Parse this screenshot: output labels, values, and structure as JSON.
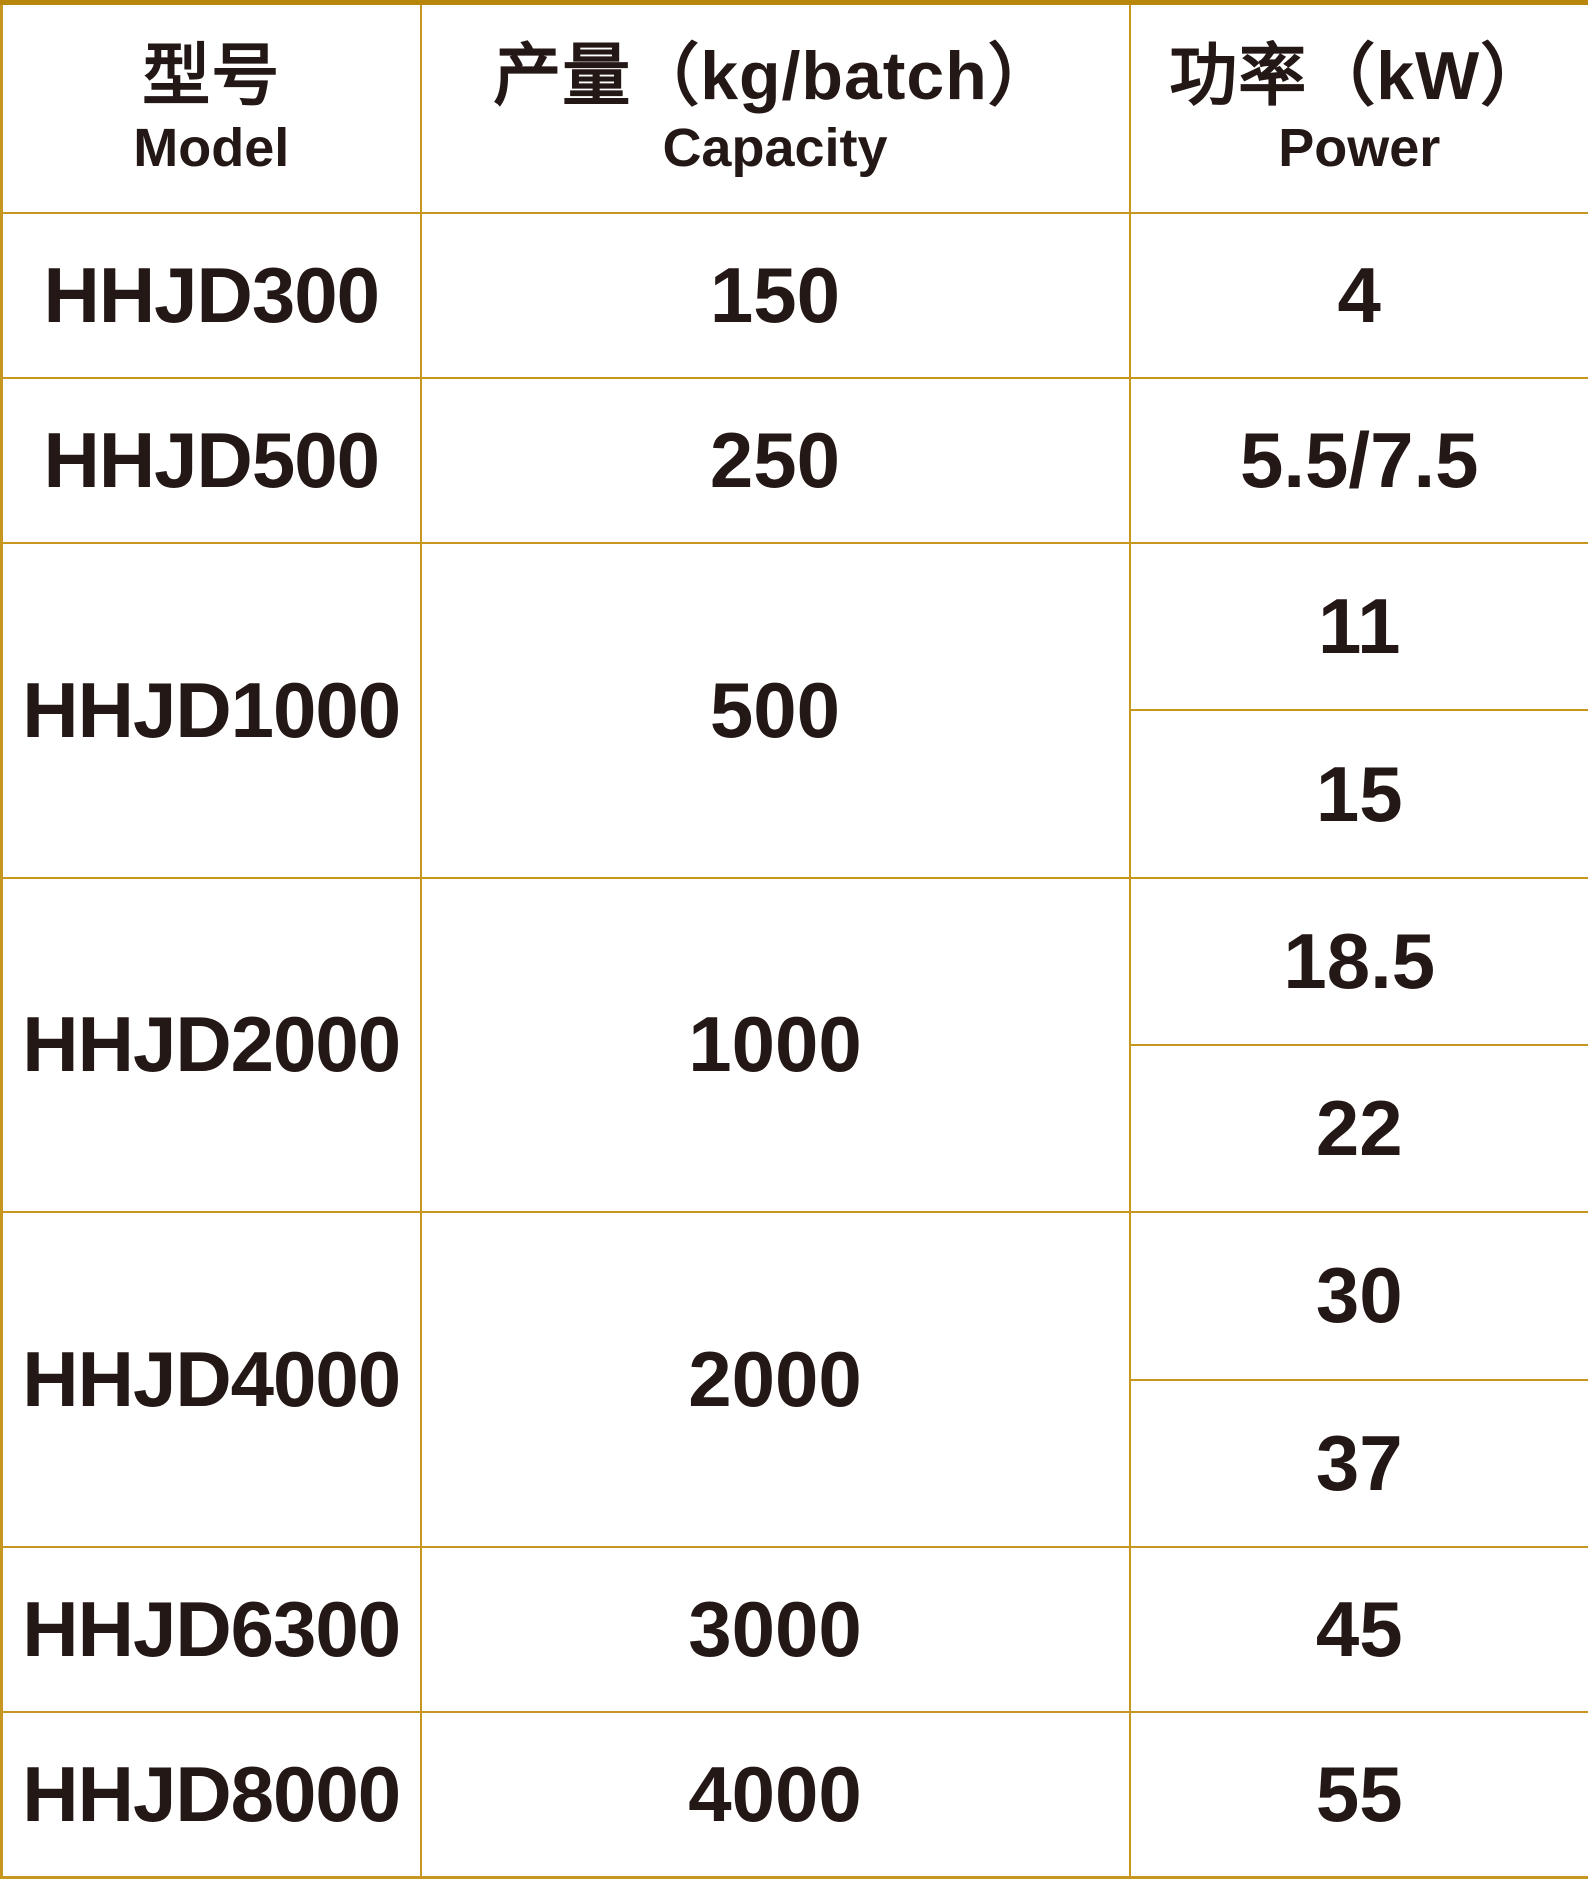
{
  "title": "Machine model specification table",
  "colors": {
    "border_gold": "#C6961E",
    "border_top_gold": "#B8860B",
    "text": "#231815",
    "background": "#FFFFFF"
  },
  "table": {
    "columns": [
      {
        "zh": "型号",
        "en": "Model"
      },
      {
        "zh": "产量（kg/batch）",
        "en": "Capacity"
      },
      {
        "zh": "功率（kW）",
        "en": "Power"
      }
    ],
    "rows": [
      {
        "model": "HHJD300",
        "capacity": "150",
        "power": [
          "4"
        ]
      },
      {
        "model": "HHJD500",
        "capacity": "250",
        "power": [
          "5.5/7.5"
        ]
      },
      {
        "model": "HHJD1000",
        "capacity": "500",
        "power": [
          "11",
          "15"
        ]
      },
      {
        "model": "HHJD2000",
        "capacity": "1000",
        "power": [
          "18.5",
          "22"
        ]
      },
      {
        "model": "HHJD4000",
        "capacity": "2000",
        "power": [
          "30",
          "37"
        ]
      },
      {
        "model": "HHJD6300",
        "capacity": "3000",
        "power": [
          "45"
        ]
      },
      {
        "model": "HHJD8000",
        "capacity": "4000",
        "power": [
          "55"
        ]
      }
    ]
  },
  "chart_data": {
    "type": "table",
    "title": "",
    "columns": [
      "型号 Model",
      "产量（kg/batch） Capacity",
      "功率（kW） Power"
    ],
    "rows": [
      [
        "HHJD300",
        150,
        "4"
      ],
      [
        "HHJD500",
        250,
        "5.5/7.5"
      ],
      [
        "HHJD1000",
        500,
        "11 / 15"
      ],
      [
        "HHJD2000",
        1000,
        "18.5 / 22"
      ],
      [
        "HHJD4000",
        2000,
        "30 / 37"
      ],
      [
        "HHJD6300",
        3000,
        "45"
      ],
      [
        "HHJD8000",
        4000,
        "55"
      ]
    ],
    "layout_hints": {
      "merged_cells": "model and capacity cells span two power sub-rows for HHJD1000, HHJD2000, HHJD4000",
      "grid": "gold borders on white background, all text centered"
    }
  }
}
